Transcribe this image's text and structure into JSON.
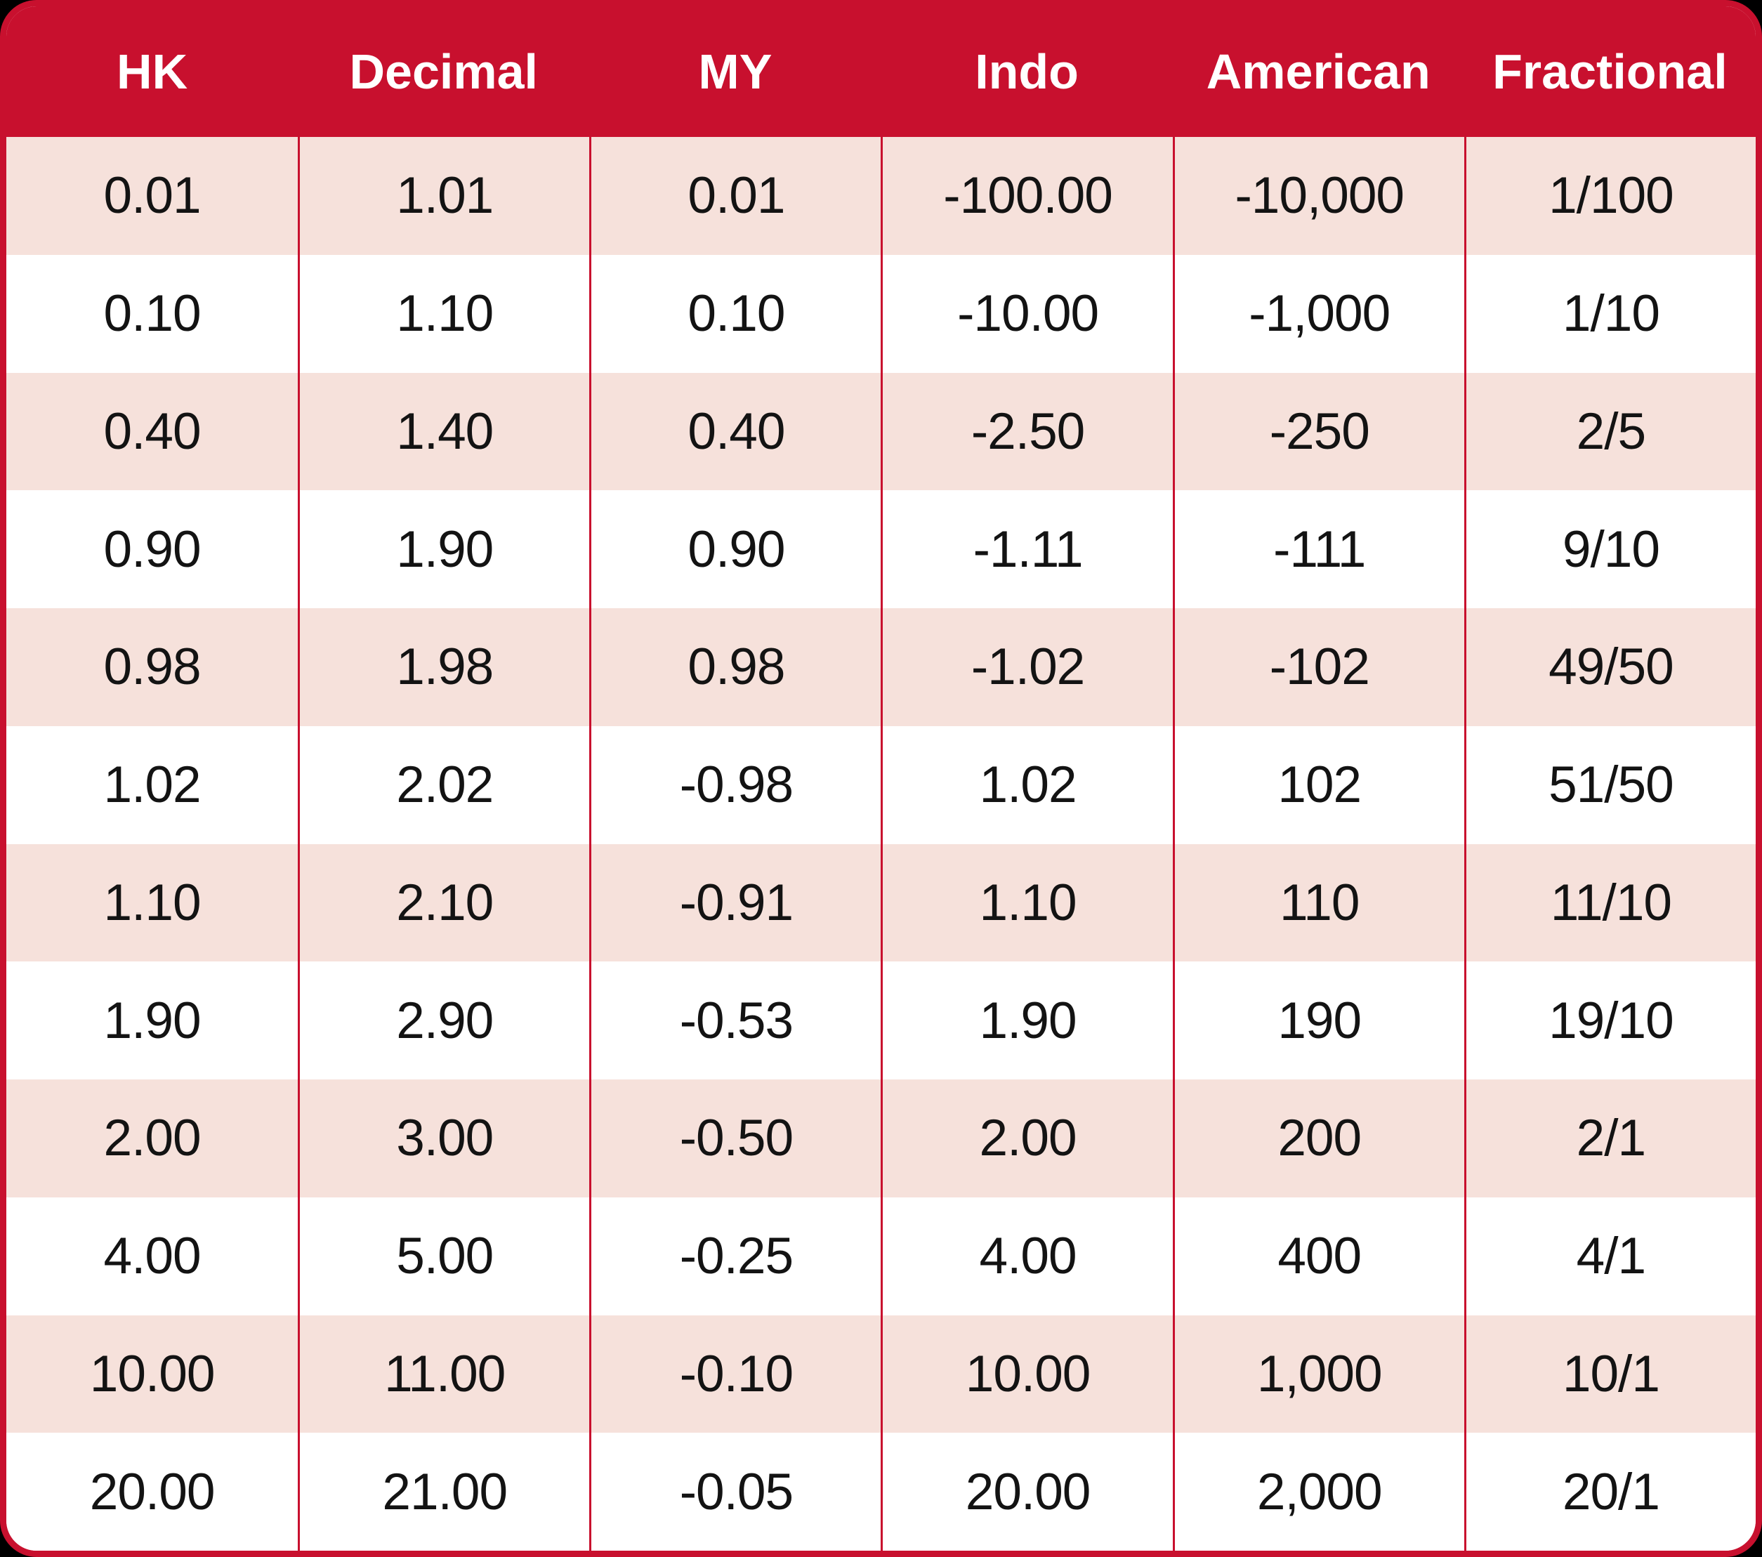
{
  "colors": {
    "header_red": "#c8102e",
    "row_pink": "#f6e1db",
    "background_black": "#000000",
    "body_text": "#131313",
    "header_text": "#ffffff"
  },
  "chart_data": {
    "type": "table",
    "title": "",
    "legend": [],
    "columns": [
      "HK",
      "Decimal",
      "MY",
      "Indo",
      "American",
      "Fractional"
    ],
    "rows": [
      [
        "0.01",
        "1.01",
        "0.01",
        "-100.00",
        "-10,000",
        "1/100"
      ],
      [
        "0.10",
        "1.10",
        "0.10",
        "-10.00",
        "-1,000",
        "1/10"
      ],
      [
        "0.40",
        "1.40",
        "0.40",
        "-2.50",
        "-250",
        "2/5"
      ],
      [
        "0.90",
        "1.90",
        "0.90",
        "-1.11",
        "-111",
        "9/10"
      ],
      [
        "0.98",
        "1.98",
        "0.98",
        "-1.02",
        "-102",
        "49/50"
      ],
      [
        "1.02",
        "2.02",
        "-0.98",
        "1.02",
        "102",
        "51/50"
      ],
      [
        "1.10",
        "2.10",
        "-0.91",
        "1.10",
        "110",
        "11/10"
      ],
      [
        "1.90",
        "2.90",
        "-0.53",
        "1.90",
        "190",
        "19/10"
      ],
      [
        "2.00",
        "3.00",
        "-0.50",
        "2.00",
        "200",
        "2/1"
      ],
      [
        "4.00",
        "5.00",
        "-0.25",
        "4.00",
        "400",
        "4/1"
      ],
      [
        "10.00",
        "11.00",
        "-0.10",
        "10.00",
        "1,000",
        "10/1"
      ],
      [
        "20.00",
        "21.00",
        "-0.05",
        "20.00",
        "2,000",
        "20/1"
      ]
    ]
  }
}
